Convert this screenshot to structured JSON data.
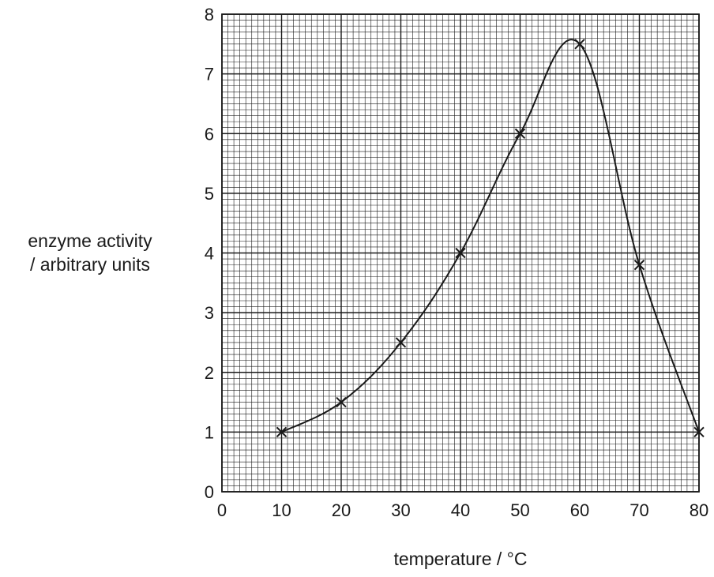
{
  "chart_data": {
    "type": "line",
    "xlabel": "temperature / °C",
    "ylabel_line1": "enzyme activity",
    "ylabel_line2": "/ arbitrary units",
    "x": [
      10,
      20,
      30,
      40,
      50,
      60,
      70,
      80
    ],
    "y": [
      1,
      1.5,
      2.5,
      4,
      6,
      7.5,
      3.8,
      1
    ],
    "xlim": [
      0,
      80
    ],
    "ylim": [
      0,
      8
    ],
    "xticks": [
      0,
      10,
      20,
      30,
      40,
      50,
      60,
      70,
      80
    ],
    "yticks": [
      0,
      1,
      2,
      3,
      4,
      5,
      6,
      7,
      8
    ],
    "grid": true,
    "marker": "x",
    "curve": "smooth"
  }
}
